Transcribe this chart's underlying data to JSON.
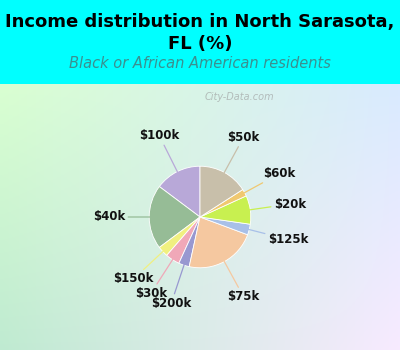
{
  "title": "Income distribution in North Sarasota,\nFL (%)",
  "subtitle": "Black or African American residents",
  "title_color": "#000000",
  "subtitle_color": "#3a9090",
  "background_top": "#00ffff",
  "watermark": "City-Data.com",
  "slices": [
    {
      "label": "$100k",
      "value": 13,
      "color": "#b8a8d8"
    },
    {
      "label": "$40k",
      "value": 18,
      "color": "#96bc96"
    },
    {
      "label": "$150k",
      "value": 3,
      "color": "#f0f080"
    },
    {
      "label": "$30k",
      "value": 4,
      "color": "#f0a8b8"
    },
    {
      "label": "$200k",
      "value": 3,
      "color": "#9898d0"
    },
    {
      "label": "$75k",
      "value": 20,
      "color": "#f5c8a0"
    },
    {
      "label": "$125k",
      "value": 3,
      "color": "#a8c0e8"
    },
    {
      "label": "$20k",
      "value": 8,
      "color": "#c8f050"
    },
    {
      "label": "$60k",
      "value": 2,
      "color": "#f0c870"
    },
    {
      "label": "$50k",
      "value": 14,
      "color": "#c8bfaa"
    }
  ],
  "label_fontsize": 8.5,
  "title_fontsize": 13,
  "subtitle_fontsize": 10.5,
  "startangle": 90
}
